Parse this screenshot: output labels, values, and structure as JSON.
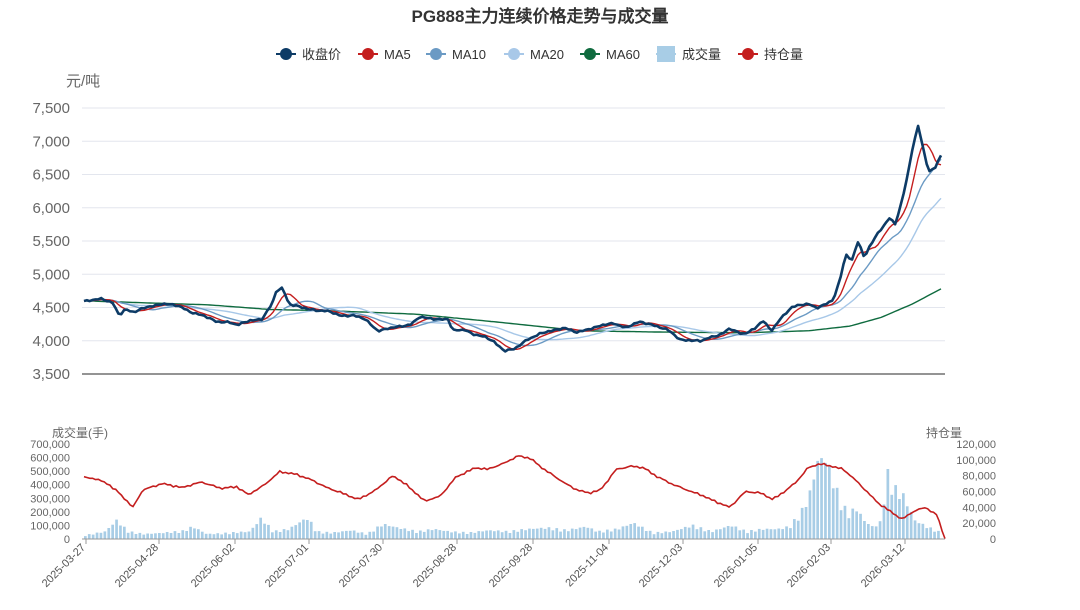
{
  "chart_data": {
    "type": "line",
    "title": "PG888主力连续价格走势与成交量",
    "price_unit": "元/吨",
    "volume_label": "成交量(手)",
    "oi_label": "持仓量",
    "legend": [
      {
        "name": "收盘价",
        "color": "#0d3b66",
        "marker": "circle"
      },
      {
        "name": "MA5",
        "color": "#c41e1e",
        "marker": "circle"
      },
      {
        "name": "MA10",
        "color": "#6b9ac4",
        "marker": "circle"
      },
      {
        "name": "MA20",
        "color": "#a8c8e8",
        "marker": "circle"
      },
      {
        "name": "MA60",
        "color": "#0f6b3f",
        "marker": "circle"
      },
      {
        "name": "成交量",
        "color": "#a8cde6",
        "marker": "rect"
      },
      {
        "name": "持仓量",
        "color": "#c41e1e",
        "marker": "circle"
      }
    ],
    "price_axis": {
      "min": 3500,
      "max": 7500,
      "ticks": [
        "7,500",
        "7,000",
        "6,500",
        "6,000",
        "5,500",
        "5,000",
        "4,500",
        "4,000",
        "3,500"
      ]
    },
    "volume_axis": {
      "min": 0,
      "max": 700000,
      "ticks": [
        "700,000",
        "600,000",
        "500,000",
        "400,000",
        "300,000",
        "200,000",
        "100,000",
        "0"
      ]
    },
    "oi_axis": {
      "min": 0,
      "max": 120000,
      "ticks": [
        "120,000",
        "100,000",
        "80,000",
        "60,000",
        "40,000",
        "20,000",
        "0"
      ]
    },
    "x_ticks": [
      "2025-03-27",
      "2025-04-28",
      "2025-06-02",
      "2025-07-01",
      "2025-07-30",
      "2025-08-28",
      "2025-09-28",
      "2025-11-04",
      "2025-12-03",
      "2026-01-05",
      "2026-02-03",
      "2026-03-12"
    ],
    "n_days": 240,
    "close_anchors": [
      [
        0,
        4590
      ],
      [
        8,
        4640
      ],
      [
        14,
        4560
      ],
      [
        17,
        4380
      ],
      [
        20,
        4480
      ],
      [
        24,
        4430
      ],
      [
        30,
        4500
      ],
      [
        38,
        4560
      ],
      [
        42,
        4540
      ],
      [
        46,
        4520
      ],
      [
        52,
        4430
      ],
      [
        58,
        4370
      ],
      [
        64,
        4290
      ],
      [
        70,
        4280
      ],
      [
        74,
        4230
      ],
      [
        80,
        4310
      ],
      [
        86,
        4320
      ],
      [
        91,
        4560
      ],
      [
        93,
        4760
      ],
      [
        96,
        4800
      ],
      [
        99,
        4550
      ],
      [
        105,
        4500
      ],
      [
        112,
        4460
      ],
      [
        118,
        4440
      ],
      [
        124,
        4380
      ],
      [
        130,
        4380
      ],
      [
        136,
        4320
      ],
      [
        142,
        4150
      ],
      [
        150,
        4200
      ],
      [
        158,
        4250
      ],
      [
        162,
        4350
      ],
      [
        170,
        4330
      ],
      [
        176,
        4320
      ],
      [
        178,
        4150
      ],
      [
        184,
        4170
      ],
      [
        188,
        4100
      ],
      [
        194,
        4050
      ],
      [
        198,
        3990
      ],
      [
        203,
        3850
      ],
      [
        208,
        3870
      ],
      [
        214,
        4020
      ],
      [
        220,
        4100
      ],
      [
        226,
        4150
      ],
      [
        232,
        4200
      ],
      [
        238,
        4120
      ],
      [
        244,
        4180
      ],
      [
        250,
        4230
      ],
      [
        256,
        4260
      ],
      [
        262,
        4200
      ],
      [
        268,
        4280
      ],
      [
        274,
        4250
      ],
      [
        282,
        4160
      ],
      [
        288,
        4020
      ],
      [
        292,
        4010
      ],
      [
        298,
        3990
      ],
      [
        302,
        4050
      ],
      [
        308,
        4100
      ],
      [
        312,
        4180
      ],
      [
        318,
        4100
      ],
      [
        324,
        4180
      ],
      [
        328,
        4300
      ],
      [
        332,
        4150
      ],
      [
        336,
        4320
      ],
      [
        342,
        4500
      ],
      [
        346,
        4540
      ],
      [
        350,
        4560
      ],
      [
        354,
        4490
      ],
      [
        358,
        4540
      ],
      [
        362,
        4620
      ],
      [
        365,
        4900
      ],
      [
        368,
        5300
      ],
      [
        371,
        5200
      ],
      [
        374,
        5500
      ],
      [
        377,
        5250
      ],
      [
        380,
        5450
      ],
      [
        383,
        5600
      ],
      [
        386,
        5700
      ],
      [
        389,
        5850
      ],
      [
        392,
        5750
      ],
      [
        395,
        6100
      ],
      [
        398,
        6500
      ],
      [
        400,
        6850
      ],
      [
        403,
        7240
      ],
      [
        406,
        6800
      ],
      [
        408,
        6550
      ],
      [
        411,
        6600
      ],
      [
        414,
        6780
      ]
    ],
    "ma60_anchors": [
      [
        0,
        4600
      ],
      [
        60,
        4540
      ],
      [
        90,
        4470
      ],
      [
        120,
        4450
      ],
      [
        160,
        4400
      ],
      [
        200,
        4280
      ],
      [
        240,
        4150
      ],
      [
        280,
        4130
      ],
      [
        320,
        4120
      ],
      [
        350,
        4150
      ],
      [
        370,
        4220
      ],
      [
        385,
        4350
      ],
      [
        400,
        4550
      ],
      [
        414,
        4780
      ]
    ],
    "oi_anchors": [
      [
        0,
        78000
      ],
      [
        6,
        76000
      ],
      [
        12,
        70000
      ],
      [
        18,
        58000
      ],
      [
        25,
        40000
      ],
      [
        30,
        62000
      ],
      [
        40,
        70000
      ],
      [
        50,
        65000
      ],
      [
        60,
        72000
      ],
      [
        70,
        64000
      ],
      [
        78,
        66000
      ],
      [
        84,
        56000
      ],
      [
        92,
        68000
      ],
      [
        100,
        85000
      ],
      [
        108,
        82000
      ],
      [
        116,
        75000
      ],
      [
        124,
        65000
      ],
      [
        132,
        58000
      ],
      [
        140,
        50000
      ],
      [
        148,
        60000
      ],
      [
        158,
        80000
      ],
      [
        165,
        68000
      ],
      [
        174,
        48000
      ],
      [
        182,
        54000
      ],
      [
        190,
        78000
      ],
      [
        200,
        90000
      ],
      [
        206,
        88000
      ],
      [
        214,
        95000
      ],
      [
        222,
        105000
      ],
      [
        228,
        102000
      ],
      [
        234,
        90000
      ],
      [
        240,
        80000
      ],
      [
        246,
        70000
      ],
      [
        252,
        62000
      ],
      [
        258,
        58000
      ],
      [
        264,
        62000
      ],
      [
        272,
        88000
      ],
      [
        280,
        92000
      ],
      [
        286,
        90000
      ],
      [
        292,
        80000
      ],
      [
        300,
        70000
      ],
      [
        308,
        62000
      ],
      [
        316,
        55000
      ],
      [
        322,
        48000
      ],
      [
        330,
        40000
      ],
      [
        338,
        60000
      ],
      [
        346,
        58000
      ],
      [
        352,
        50000
      ],
      [
        358,
        60000
      ],
      [
        364,
        72000
      ],
      [
        370,
        90000
      ],
      [
        376,
        95000
      ],
      [
        382,
        92000
      ],
      [
        388,
        88000
      ],
      [
        394,
        75000
      ],
      [
        400,
        60000
      ],
      [
        406,
        45000
      ],
      [
        412,
        35000
      ],
      [
        418,
        25000
      ],
      [
        424,
        35000
      ],
      [
        430,
        40000
      ],
      [
        436,
        30000
      ],
      [
        440,
        0
      ]
    ],
    "volume_anchors": [
      [
        0,
        30000
      ],
      [
        10,
        60000
      ],
      [
        16,
        150000
      ],
      [
        22,
        60000
      ],
      [
        30,
        40000
      ],
      [
        40,
        50000
      ],
      [
        50,
        65000
      ],
      [
        55,
        100000
      ],
      [
        62,
        40000
      ],
      [
        70,
        45000
      ],
      [
        78,
        55000
      ],
      [
        84,
        60000
      ],
      [
        90,
        170000
      ],
      [
        96,
        60000
      ],
      [
        104,
        80000
      ],
      [
        110,
        140000
      ],
      [
        114,
        170000
      ],
      [
        118,
        60000
      ],
      [
        126,
        50000
      ],
      [
        136,
        70000
      ],
      [
        144,
        40000
      ],
      [
        152,
        120000
      ],
      [
        160,
        90000
      ],
      [
        170,
        60000
      ],
      [
        178,
        80000
      ],
      [
        186,
        60000
      ],
      [
        196,
        50000
      ],
      [
        206,
        70000
      ],
      [
        216,
        60000
      ],
      [
        226,
        80000
      ],
      [
        236,
        90000
      ],
      [
        246,
        70000
      ],
      [
        256,
        100000
      ],
      [
        262,
        60000
      ],
      [
        272,
        80000
      ],
      [
        280,
        130000
      ],
      [
        290,
        50000
      ],
      [
        300,
        60000
      ],
      [
        310,
        110000
      ],
      [
        320,
        60000
      ],
      [
        330,
        110000
      ],
      [
        338,
        60000
      ],
      [
        346,
        80000
      ],
      [
        354,
        80000
      ],
      [
        360,
        100000
      ],
      [
        366,
        220000
      ],
      [
        370,
        350000
      ],
      [
        374,
        620000
      ],
      [
        378,
        660000
      ],
      [
        382,
        480000
      ],
      [
        386,
        300000
      ],
      [
        390,
        200000
      ],
      [
        394,
        250000
      ],
      [
        398,
        150000
      ],
      [
        402,
        100000
      ],
      [
        406,
        120000
      ],
      [
        410,
        520000
      ],
      [
        414,
        400000
      ],
      [
        418,
        350000
      ],
      [
        424,
        150000
      ],
      [
        430,
        100000
      ],
      [
        436,
        60000
      ]
    ]
  }
}
